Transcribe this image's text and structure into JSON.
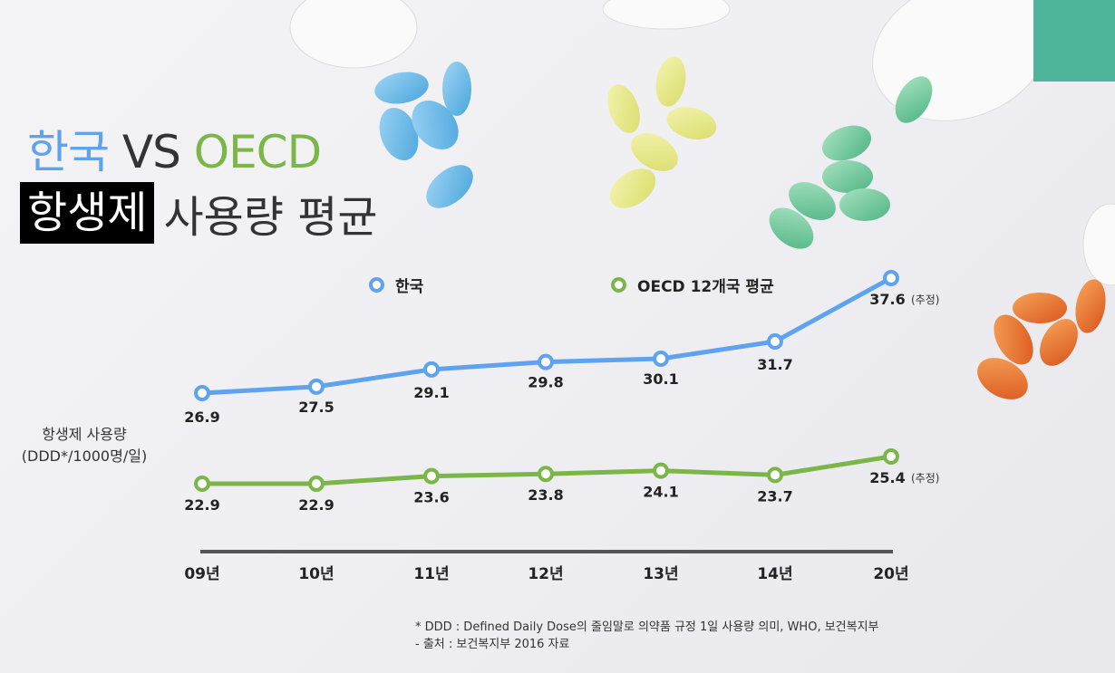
{
  "title": {
    "part1": "한국",
    "vs": " VS ",
    "part2": "OECD",
    "highlight": "항생제",
    "rest": "사용량 평균"
  },
  "y_label": {
    "line1": "항생제 사용량",
    "line2": "(DDD*/1000명/일)"
  },
  "footnotes": [
    "* DDD : Defined Daily Dose의 줄임말로 의약품 규정 1일 사용량 의미, WHO, 보건복지부",
    "- 출처 : 보건복지부 2016 자료"
  ],
  "colors": {
    "korea": "#5fa3ee",
    "oecd": "#7ab648",
    "axis": "#555555"
  },
  "chart_data": {
    "type": "line",
    "categories": [
      "09년",
      "10년",
      "11년",
      "12년",
      "13년",
      "14년",
      "20년"
    ],
    "series": [
      {
        "name": "한국",
        "values": [
          26.9,
          27.5,
          29.1,
          29.8,
          30.1,
          31.7,
          37.6
        ],
        "labels": [
          "26.9",
          "27.5",
          "29.1",
          "29.8",
          "30.1",
          "31.7",
          "37.6"
        ]
      },
      {
        "name": "OECD 12개국 평균",
        "values": [
          22.9,
          22.9,
          23.6,
          23.8,
          24.1,
          23.7,
          25.4
        ],
        "labels": [
          "22.9",
          "22.9",
          "23.6",
          "23.8",
          "24.1",
          "23.7",
          "25.4"
        ]
      }
    ],
    "estimate_note": "(추정)",
    "legend": "top",
    "grid": false
  }
}
